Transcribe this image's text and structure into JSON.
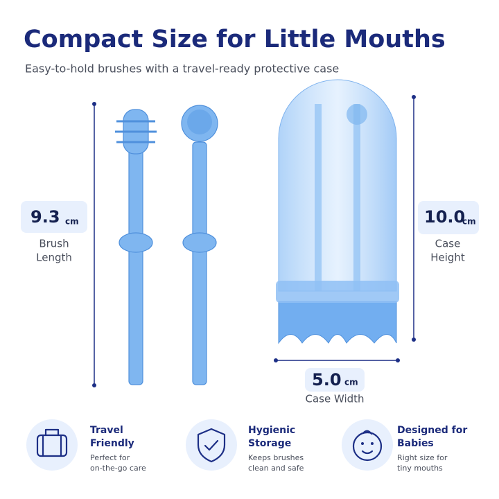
{
  "header": {
    "title": "Compact Size for Little Mouths",
    "subtitle": "Easy-to-hold brushes with a travel-ready protective case"
  },
  "dimensions": [
    {
      "value": "9.3",
      "unit": "cm",
      "label": [
        "Brush",
        "Length"
      ]
    },
    {
      "value": "10.0",
      "unit": "cm",
      "label": [
        "Case",
        "Height"
      ]
    },
    {
      "value": "5.0",
      "unit": "cm",
      "label": [
        "Case Width"
      ]
    }
  ],
  "features": [
    {
      "title": [
        "Travel",
        "Friendly"
      ],
      "description": [
        "Perfect for",
        "on-the-go care"
      ]
    },
    {
      "title": [
        "Hygienic",
        "Storage"
      ],
      "description": [
        "Keeps brushes",
        "clean and safe"
      ]
    },
    {
      "title": [
        "Designed for",
        "Babies"
      ],
      "description": [
        "Right size for",
        "tiny mouths"
      ]
    }
  ]
}
